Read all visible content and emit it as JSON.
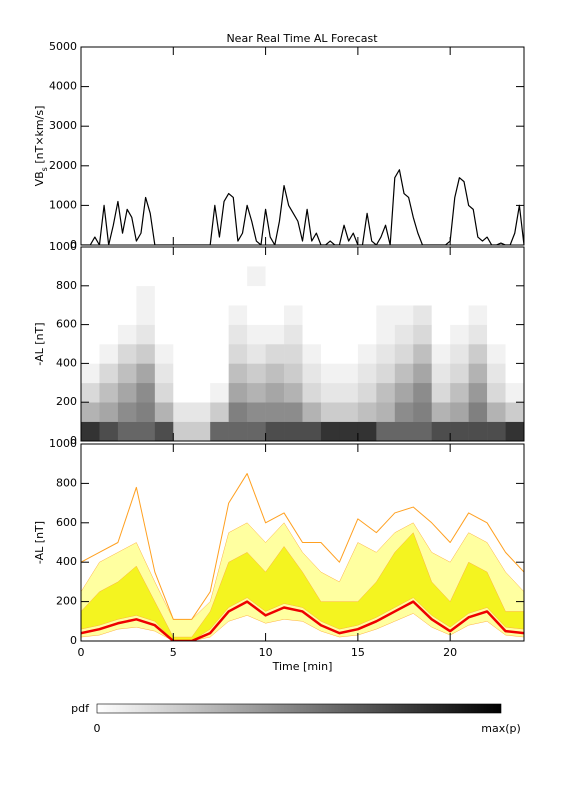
{
  "chart_data": [
    {
      "type": "line",
      "title": "Near Real Time AL Forecast",
      "ylabel": [
        "VB",
        "s",
        " [nT×km/s]"
      ],
      "xlim": [
        0,
        24
      ],
      "xticks": [
        0,
        5,
        10,
        15,
        20
      ],
      "ylim": [
        0,
        5000
      ],
      "yticks": [
        0,
        1000,
        2000,
        3000,
        4000,
        5000
      ],
      "x": [
        0,
        0.25,
        0.5,
        0.75,
        1,
        1.25,
        1.5,
        1.75,
        2,
        2.25,
        2.5,
        2.75,
        3,
        3.25,
        3.5,
        3.75,
        4,
        4.25,
        4.5,
        4.75,
        5,
        5.25,
        5.5,
        5.75,
        6,
        6.25,
        6.5,
        6.75,
        7,
        7.25,
        7.5,
        7.75,
        8,
        8.25,
        8.5,
        8.75,
        9,
        9.25,
        9.5,
        9.75,
        10,
        10.25,
        10.5,
        10.75,
        11,
        11.25,
        11.5,
        11.75,
        12,
        12.25,
        12.5,
        12.75,
        13,
        13.25,
        13.5,
        13.75,
        14,
        14.25,
        14.5,
        14.75,
        15,
        15.25,
        15.5,
        15.75,
        16,
        16.25,
        16.5,
        16.75,
        17,
        17.25,
        17.5,
        17.75,
        18,
        18.25,
        18.5,
        18.75,
        19,
        19.25,
        19.5,
        19.75,
        20,
        20.25,
        20.5,
        20.75,
        21,
        21.25,
        21.5,
        21.75,
        22,
        22.25,
        22.5,
        22.75,
        23,
        23.25,
        23.5,
        23.75,
        24
      ],
      "series": [
        {
          "color": "#000000",
          "values": [
            0,
            0,
            0,
            200,
            0,
            1000,
            0,
            500,
            1100,
            300,
            900,
            700,
            100,
            300,
            1200,
            800,
            0,
            0,
            0,
            0,
            0,
            0,
            0,
            0,
            0,
            0,
            0,
            0,
            0,
            1000,
            200,
            1100,
            1300,
            1200,
            100,
            300,
            1000,
            600,
            100,
            0,
            900,
            200,
            0,
            600,
            1500,
            1000,
            800,
            600,
            100,
            900,
            100,
            300,
            0,
            0,
            100,
            0,
            0,
            500,
            100,
            300,
            0,
            0,
            800,
            100,
            0,
            200,
            500,
            0,
            1700,
            1900,
            1300,
            1200,
            700,
            300,
            0,
            0,
            0,
            0,
            0,
            0,
            100,
            1200,
            1700,
            1600,
            1000,
            900,
            200,
            100,
            200,
            0,
            0,
            50,
            0,
            0,
            300,
            1000,
            0
          ]
        }
      ]
    },
    {
      "type": "heatmap",
      "ylabel": "-AL [nT]",
      "xlim": [
        0,
        24
      ],
      "xticks": [
        0,
        5,
        10,
        15,
        20
      ],
      "ylim": [
        0,
        1000
      ],
      "yticks": [
        0,
        200,
        400,
        600,
        800,
        1000
      ],
      "xbins": [
        0,
        1,
        2,
        3,
        4,
        5,
        6,
        7,
        8,
        9,
        10,
        11,
        12,
        13,
        14,
        15,
        16,
        17,
        18,
        19,
        20,
        21,
        22,
        23,
        24
      ],
      "ybins": [
        0,
        100,
        200,
        300,
        400,
        500,
        600,
        700,
        800,
        900
      ],
      "colors": [
        "#ffffff",
        "#000000"
      ],
      "z": [
        [
          0.8,
          0.7,
          0.6,
          0.6,
          0.7,
          0.2,
          0.2,
          0.6,
          0.6,
          0.6,
          0.7,
          0.7,
          0.7,
          0.8,
          0.8,
          0.8,
          0.6,
          0.6,
          0.6,
          0.7,
          0.7,
          0.7,
          0.7,
          0.8
        ],
        [
          0.3,
          0.35,
          0.45,
          0.5,
          0.3,
          0.1,
          0.1,
          0.2,
          0.5,
          0.45,
          0.45,
          0.45,
          0.3,
          0.2,
          0.2,
          0.25,
          0.3,
          0.45,
          0.5,
          0.3,
          0.35,
          0.5,
          0.3,
          0.2
        ],
        [
          0.15,
          0.25,
          0.35,
          0.45,
          0.15,
          0,
          0,
          0.05,
          0.35,
          0.3,
          0.35,
          0.3,
          0.15,
          0.1,
          0.1,
          0.15,
          0.25,
          0.35,
          0.45,
          0.15,
          0.25,
          0.4,
          0.15,
          0.05
        ],
        [
          0.05,
          0.15,
          0.25,
          0.35,
          0.1,
          0,
          0,
          0,
          0.25,
          0.2,
          0.25,
          0.2,
          0.1,
          0.05,
          0.05,
          0.1,
          0.15,
          0.25,
          0.35,
          0.1,
          0.15,
          0.3,
          0.1,
          0
        ],
        [
          0,
          0.05,
          0.15,
          0.2,
          0.05,
          0,
          0,
          0,
          0.15,
          0.1,
          0.15,
          0.15,
          0.05,
          0,
          0,
          0.05,
          0.1,
          0.15,
          0.25,
          0.05,
          0.1,
          0.2,
          0.05,
          0
        ],
        [
          0,
          0,
          0.05,
          0.1,
          0,
          0,
          0,
          0,
          0.1,
          0.05,
          0.05,
          0.1,
          0,
          0,
          0,
          0,
          0.05,
          0.1,
          0.15,
          0,
          0.05,
          0.1,
          0,
          0
        ],
        [
          0,
          0,
          0,
          0.05,
          0,
          0,
          0,
          0,
          0.05,
          0,
          0,
          0.05,
          0,
          0,
          0,
          0,
          0.05,
          0.05,
          0.1,
          0,
          0,
          0.05,
          0,
          0
        ],
        [
          0,
          0,
          0,
          0.05,
          0,
          0,
          0,
          0,
          0,
          0,
          0,
          0,
          0,
          0,
          0,
          0,
          0,
          0,
          0,
          0,
          0,
          0,
          0,
          0
        ],
        [
          0,
          0,
          0,
          0,
          0,
          0,
          0,
          0,
          0,
          0.05,
          0,
          0,
          0,
          0,
          0,
          0,
          0,
          0,
          0,
          0,
          0,
          0,
          0,
          0
        ]
      ]
    },
    {
      "type": "band",
      "ylabel": "-AL [nT]",
      "xlabel": "Time [min]",
      "xlim": [
        0,
        24
      ],
      "xticks": [
        0,
        5,
        10,
        15,
        20
      ],
      "ylim": [
        0,
        1000
      ],
      "yticks": [
        0,
        200,
        400,
        600,
        800,
        1000
      ],
      "x": [
        0,
        1,
        2,
        3,
        4,
        5,
        6,
        7,
        8,
        9,
        10,
        11,
        12,
        13,
        14,
        15,
        16,
        17,
        18,
        19,
        20,
        21,
        22,
        23,
        24
      ],
      "bands": [
        {
          "color": "#ffffa0",
          "lower": [
            20,
            30,
            60,
            70,
            50,
            0,
            0,
            20,
            100,
            130,
            90,
            110,
            100,
            50,
            20,
            30,
            60,
            100,
            140,
            70,
            30,
            80,
            100,
            30,
            20
          ],
          "upper": [
            250,
            400,
            450,
            500,
            300,
            110,
            110,
            200,
            550,
            600,
            500,
            600,
            450,
            350,
            300,
            500,
            450,
            550,
            600,
            450,
            400,
            550,
            500,
            350,
            250
          ]
        },
        {
          "color": "#f4f420",
          "lower": [
            60,
            80,
            110,
            130,
            100,
            0,
            0,
            60,
            170,
            220,
            150,
            190,
            170,
            100,
            60,
            80,
            120,
            170,
            220,
            130,
            70,
            140,
            170,
            70,
            60
          ],
          "upper": [
            150,
            250,
            300,
            380,
            200,
            20,
            20,
            150,
            400,
            450,
            350,
            480,
            350,
            200,
            200,
            200,
            300,
            450,
            550,
            300,
            200,
            400,
            350,
            150,
            150
          ]
        }
      ],
      "series": [
        {
          "color": "#ffa020",
          "width": 1,
          "values": [
            400,
            450,
            500,
            780,
            350,
            110,
            110,
            250,
            700,
            850,
            600,
            650,
            500,
            500,
            400,
            620,
            550,
            650,
            680,
            600,
            500,
            650,
            600,
            450,
            350
          ]
        },
        {
          "color": "#ee0000",
          "width": 2.5,
          "values": [
            40,
            60,
            90,
            110,
            80,
            0,
            0,
            40,
            150,
            200,
            130,
            170,
            150,
            80,
            40,
            60,
            100,
            150,
            200,
            110,
            50,
            120,
            150,
            50,
            40
          ]
        }
      ]
    },
    {
      "type": "colorbar",
      "label": "pdf",
      "min_label": "0",
      "max_label": "max(p)",
      "colors": [
        "#ffffff",
        "#000000"
      ]
    }
  ]
}
